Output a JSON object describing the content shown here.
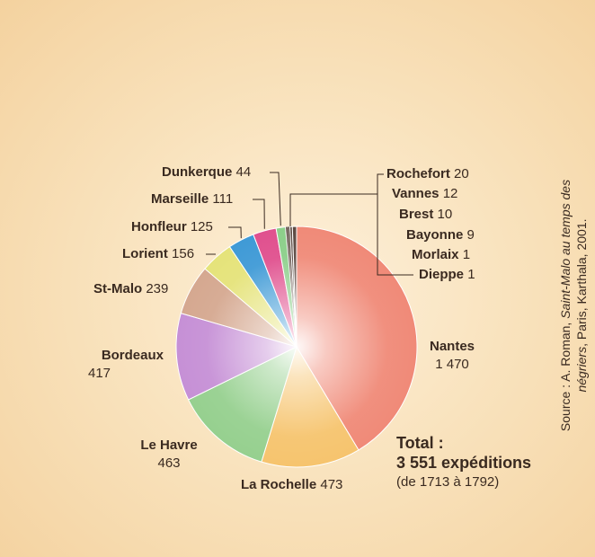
{
  "chart_data": {
    "type": "pie",
    "slices": [
      {
        "label": "Nantes",
        "value": 1470,
        "value_text": "1 470",
        "color": "#f08a78"
      },
      {
        "label": "La Rochelle",
        "value": 473,
        "value_text": "473",
        "color": "#f6c46e"
      },
      {
        "label": "Le Havre",
        "value": 463,
        "value_text": "463",
        "color": "#96d08f"
      },
      {
        "label": "Bordeaux",
        "value": 417,
        "value_text": "417",
        "color": "#c690d6"
      },
      {
        "label": "St-Malo",
        "value": 239,
        "value_text": "239",
        "color": "#d5a890"
      },
      {
        "label": "Lorient",
        "value": 156,
        "value_text": "156",
        "color": "#e5e37a"
      },
      {
        "label": "Honfleur",
        "value": 125,
        "value_text": "125",
        "color": "#3f9ad6"
      },
      {
        "label": "Marseille",
        "value": 111,
        "value_text": "111",
        "color": "#e0508e"
      },
      {
        "label": "Dunkerque",
        "value": 44,
        "value_text": "44",
        "color": "#8ccf8a"
      },
      {
        "label": "Rochefort",
        "value": 20,
        "value_text": "20",
        "color": "#5c4a42"
      },
      {
        "label": "Vannes",
        "value": 12,
        "value_text": "12",
        "color": "#5c4a42"
      },
      {
        "label": "Brest",
        "value": 10,
        "value_text": "10",
        "color": "#5c4a42"
      },
      {
        "label": "Bayonne",
        "value": 9,
        "value_text": "9",
        "color": "#5c4a42"
      },
      {
        "label": "Morlaix",
        "value": 1,
        "value_text": "1",
        "color": "#5c4a42"
      },
      {
        "label": "Dieppe",
        "value": 1,
        "value_text": "1",
        "color": "#5c4a42"
      }
    ],
    "total": {
      "line1": "Total :",
      "line2": "3 551 expéditions",
      "line3": "(de 1713 à 1792)"
    },
    "source": {
      "prefix": "Source : A. Roman, ",
      "title": "Saint-Malo au temps des négriers",
      "suffix": ", Paris, Karthala, 2001."
    }
  }
}
